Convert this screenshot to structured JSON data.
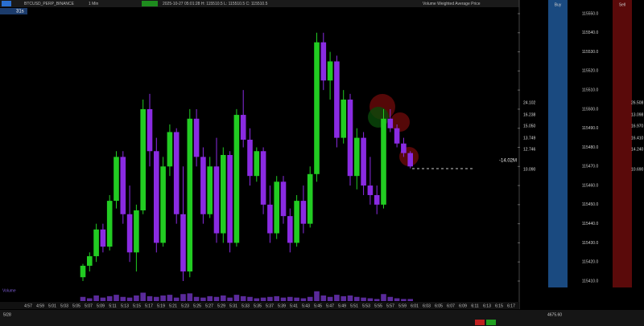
{
  "toolbar": {
    "symbol": "BTCUSD_PERP_BINANCE",
    "interval": "1 Min",
    "info": "2025-10-27 05:01:28 H: 115510.5 L: 115510.5 C: 115510.5",
    "indicator": "Volume Weighted Average Price",
    "countdown": "31s"
  },
  "chart_data": {
    "type": "candlestick",
    "ohlc": [
      [
        115412,
        115419,
        115410,
        115418
      ],
      [
        115418,
        115425,
        115415,
        115423
      ],
      [
        115423,
        115440,
        115420,
        115437
      ],
      [
        115437,
        115440,
        115425,
        115428
      ],
      [
        115428,
        115455,
        115426,
        115452
      ],
      [
        115452,
        115478,
        115448,
        115475
      ],
      [
        115475,
        115478,
        115440,
        115445
      ],
      [
        115445,
        115460,
        115420,
        115425
      ],
      [
        115425,
        115450,
        115415,
        115447
      ],
      [
        115447,
        115505,
        115445,
        115500
      ],
      [
        115500,
        115508,
        115470,
        115478
      ],
      [
        115478,
        115485,
        115425,
        115430
      ],
      [
        115430,
        115475,
        115428,
        115470
      ],
      [
        115470,
        115492,
        115465,
        115488
      ],
      [
        115488,
        115490,
        115440,
        115445
      ],
      [
        115445,
        115470,
        115410,
        115415
      ],
      [
        115415,
        115500,
        115412,
        115495
      ],
      [
        115495,
        115500,
        115470,
        115475
      ],
      [
        115475,
        115480,
        115440,
        115445
      ],
      [
        115445,
        115475,
        115443,
        115470
      ],
      [
        115470,
        115485,
        115430,
        115435
      ],
      [
        115435,
        115480,
        115430,
        115476
      ],
      [
        115476,
        115478,
        115425,
        115430
      ],
      [
        115430,
        115500,
        115428,
        115497
      ],
      [
        115497,
        115510,
        115480,
        115484
      ],
      [
        115484,
        115490,
        115460,
        115465
      ],
      [
        115465,
        115480,
        115462,
        115478
      ],
      [
        115478,
        115480,
        115445,
        115450
      ],
      [
        115450,
        115460,
        115430,
        115435
      ],
      [
        115435,
        115465,
        115432,
        115462
      ],
      [
        115462,
        115465,
        115440,
        115444
      ],
      [
        115444,
        115448,
        115425,
        115430
      ],
      [
        115430,
        115455,
        115428,
        115452
      ],
      [
        115452,
        115460,
        115435,
        115440
      ],
      [
        115440,
        115470,
        115438,
        115466
      ],
      [
        115466,
        115540,
        115462,
        115535
      ],
      [
        115535,
        115540,
        115510,
        115515
      ],
      [
        115515,
        115530,
        115505,
        115525
      ],
      [
        115525,
        115528,
        115480,
        115485
      ],
      [
        115485,
        115510,
        115482,
        115505
      ],
      [
        115505,
        115508,
        115460,
        115465
      ],
      [
        115465,
        115490,
        115458,
        115485
      ],
      [
        115485,
        115488,
        115455,
        115460
      ],
      [
        115460,
        115475,
        115450,
        115455
      ],
      [
        115455,
        115460,
        115445,
        115450
      ],
      [
        115450,
        115500,
        115448,
        115495
      ],
      [
        115495,
        115500,
        115488,
        115490
      ],
      [
        115490,
        115492,
        115480,
        115482
      ],
      [
        115482,
        115485,
        115475,
        115477
      ],
      [
        115477,
        115478,
        115469,
        115470
      ]
    ],
    "volume": [
      6,
      4,
      8,
      5,
      7,
      9,
      6,
      5,
      8,
      12,
      7,
      6,
      8,
      9,
      5,
      10,
      11,
      6,
      5,
      7,
      6,
      8,
      5,
      9,
      7,
      6,
      4,
      5,
      6,
      7,
      5,
      6,
      5,
      4,
      6,
      14,
      8,
      6,
      9,
      7,
      8,
      6,
      5,
      4,
      3,
      10,
      6,
      4,
      3,
      3
    ],
    "up_color": "#22cc22",
    "down_color": "#8a2be2",
    "volume_color": "#5a2a9a",
    "ylim": [
      115410,
      115550
    ],
    "yticks": [
      {
        "value": 115550,
        "label": "115550.0"
      },
      {
        "value": 115540,
        "label": "115540.0"
      },
      {
        "value": 115530,
        "label": "115530.0"
      },
      {
        "value": 115520,
        "label": "115520.0"
      },
      {
        "value": 115510,
        "label": "115510.0"
      },
      {
        "value": 115500,
        "label": "115500.0"
      },
      {
        "value": 115490,
        "label": "115490.0"
      },
      {
        "value": 115480,
        "label": "115480.0"
      },
      {
        "value": 115470,
        "label": "115470.0"
      },
      {
        "value": 115460,
        "label": "115460.0"
      },
      {
        "value": 115450,
        "label": "115450.0"
      },
      {
        "value": 115440,
        "label": "115440.0"
      },
      {
        "value": 115430,
        "label": "115430.0"
      },
      {
        "value": 115420,
        "label": "115420.0"
      },
      {
        "value": 115410,
        "label": "115410.0"
      }
    ],
    "vlim": [
      0,
      40
    ],
    "time_labels": [
      "4:57",
      "4:59",
      "5:01",
      "5:03",
      "5:05",
      "5:07",
      "5:09",
      "5:11",
      "5:13",
      "5:15",
      "5:17",
      "5:19",
      "5:21",
      "5:23",
      "5:25",
      "5:27",
      "5:29",
      "5:31",
      "5:33",
      "5:35",
      "5:37",
      "5:39",
      "5:41",
      "5:43",
      "5:45",
      "5:47",
      "5:49",
      "5:51",
      "5:53",
      "5:55",
      "5:57",
      "5:59",
      "6:01",
      "6:03",
      "6:05",
      "6:07",
      "6:09",
      "6:11",
      "6:13",
      "6:15",
      "6:17"
    ],
    "volume_label": "Volume",
    "delta_label": "-14.02M"
  },
  "ladder": {
    "buy_header": "Buy",
    "sell_header": "Sell",
    "bid_sizes": [
      "24.102",
      "16.238",
      "15.050",
      "13.749",
      "12.746",
      "10.090"
    ],
    "ask_sizes": [
      "26.508",
      "13.098",
      "16.970",
      "16.410",
      "14.240",
      "10.690"
    ]
  },
  "status": {
    "left": "5/28",
    "right": "4675.60"
  }
}
